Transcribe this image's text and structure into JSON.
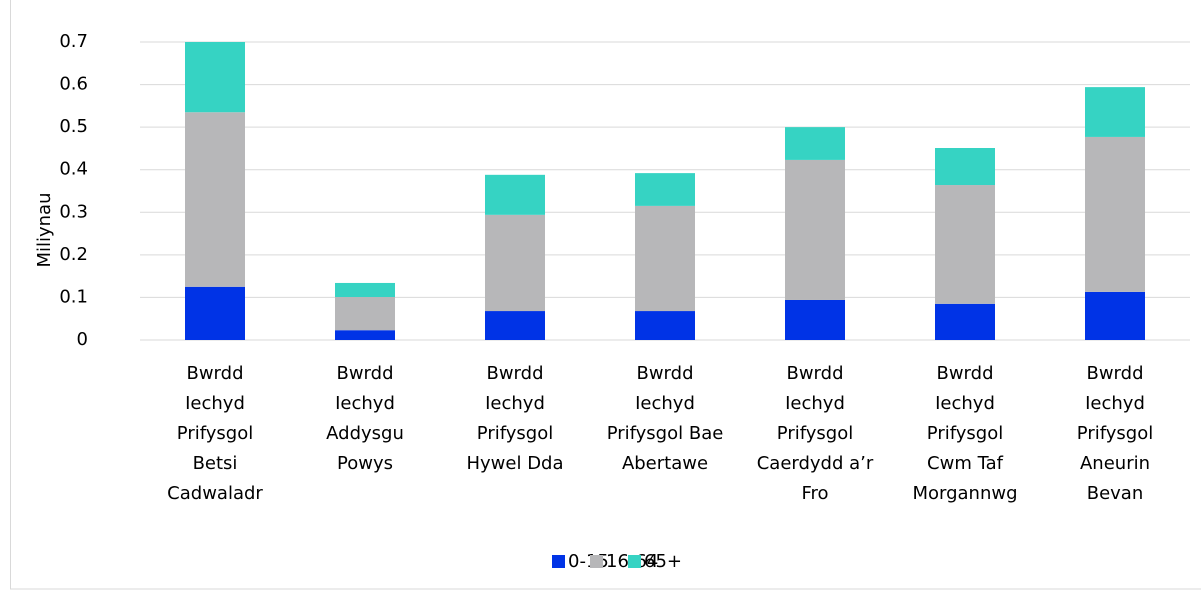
{
  "chart_data": {
    "type": "stacked_bar",
    "y_label": "Miliynau",
    "categories": [
      "Bwrdd Iechyd Prifysgol Betsi Cadwaladr",
      "Bwrdd Iechyd Addysgu Powys",
      "Bwrdd Iechyd Prifysgol Hywel Dda",
      "Bwrdd Iechyd Prifysgol Bae Abertawe",
      "Bwrdd Iechyd Prifysgol Caerdydd a’r Fro",
      "Bwrdd Iechyd Prifysgol Cwm Taf Morgannwg",
      "Bwrdd Iechyd Prifysgol Aneurin Bevan"
    ],
    "series": [
      {
        "name": "0-15",
        "color": "#0033e6",
        "values": [
          0.125,
          0.023,
          0.068,
          0.068,
          0.094,
          0.085,
          0.113
        ]
      },
      {
        "name": "16-64",
        "color": "#b7b7b9",
        "values": [
          0.41,
          0.078,
          0.226,
          0.247,
          0.329,
          0.279,
          0.364
        ]
      },
      {
        "name": "65+",
        "color": "#36d3c3",
        "values": [
          0.165,
          0.033,
          0.094,
          0.077,
          0.077,
          0.087,
          0.117
        ]
      }
    ],
    "ylim": [
      0,
      0.7
    ],
    "yticks": [
      0,
      0.1,
      0.2,
      0.3,
      0.4,
      0.5,
      0.6,
      0.7
    ],
    "grid": true,
    "legend": "bottom"
  }
}
